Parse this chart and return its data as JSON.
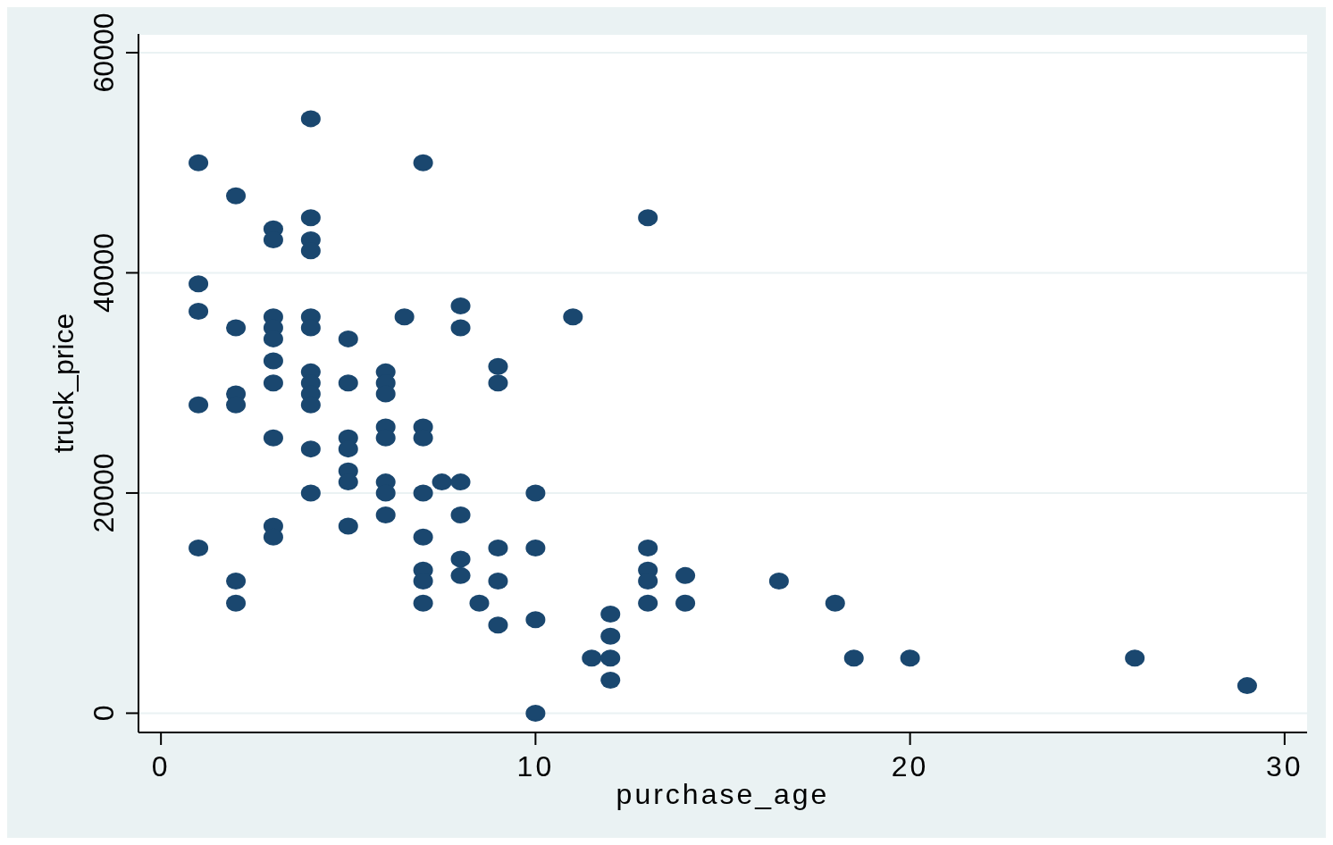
{
  "chart_data": {
    "type": "scatter",
    "xlabel": "purchase_age",
    "ylabel": "truck_price",
    "x": [
      1,
      1,
      1,
      1,
      1,
      2,
      2,
      2,
      2,
      2,
      2,
      3,
      3,
      3,
      3,
      3,
      3,
      3,
      3,
      3,
      3,
      4,
      4,
      4,
      4,
      4,
      4,
      4,
      4,
      4,
      4,
      4,
      4,
      5,
      5,
      5,
      5,
      5,
      5,
      5,
      6,
      6,
      6,
      6,
      6,
      6,
      6,
      6,
      6.5,
      7,
      7,
      7,
      7,
      7,
      7,
      7,
      7,
      7.5,
      8,
      8,
      8,
      8,
      8,
      8,
      8.5,
      9,
      9,
      9,
      9,
      9,
      10,
      10,
      10,
      10,
      11,
      11.5,
      12,
      12,
      12,
      12,
      13,
      13,
      13,
      13,
      13,
      14,
      14,
      16.5,
      18,
      18.5,
      20,
      26,
      29
    ],
    "values": [
      50000,
      39000,
      36500,
      28000,
      15000,
      47000,
      35000,
      29000,
      28000,
      12000,
      10000,
      44000,
      43000,
      36000,
      35000,
      34000,
      32000,
      30000,
      25000,
      17000,
      16000,
      54000,
      45000,
      43000,
      42000,
      36000,
      35000,
      31000,
      30000,
      29000,
      28000,
      24000,
      20000,
      34000,
      30000,
      25000,
      24000,
      22000,
      21000,
      17000,
      31000,
      30000,
      29000,
      26000,
      25000,
      21000,
      20000,
      18000,
      36000,
      50000,
      26000,
      25000,
      20000,
      16000,
      13000,
      12000,
      10000,
      21000,
      37000,
      35000,
      21000,
      18000,
      14000,
      12500,
      10000,
      31500,
      30000,
      15000,
      12000,
      8000,
      20000,
      15000,
      8500,
      0,
      36000,
      5000,
      9000,
      7000,
      5000,
      3000,
      45000,
      15000,
      13000,
      12000,
      10000,
      12500,
      10000,
      12000,
      10000,
      5000,
      5000,
      5000,
      2500
    ],
    "color": "#1a476f",
    "marker": "circle",
    "xlim": [
      -0.6,
      30.6
    ],
    "ylim": [
      -1750,
      61700
    ],
    "xticks": [
      0,
      10,
      20,
      30
    ],
    "yticks": [
      0,
      20000,
      40000,
      60000
    ],
    "grid": "y"
  }
}
